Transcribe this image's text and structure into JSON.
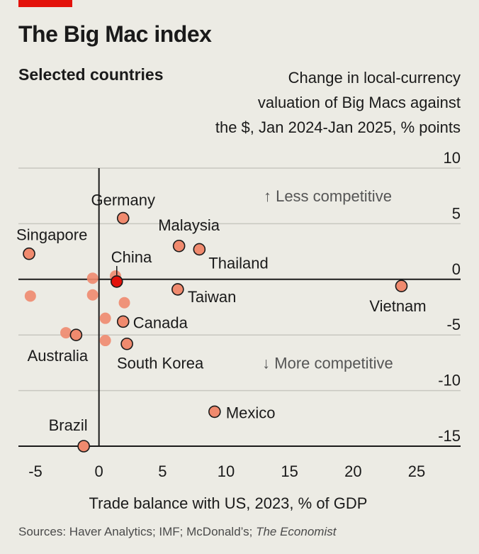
{
  "header": {
    "title": "The Big Mac index",
    "subtitle": "Selected countries",
    "source_prefix": "Sources: Haver Analytics; IMF; McDonald’s; ",
    "source_italic": "The Economist"
  },
  "colors": {
    "background": "#ecebe4",
    "accent_red": "#e3120b",
    "point_fill": "#f08a6e",
    "highlight_fill": "#e3120b",
    "axis": "#1a1a1a",
    "grid": "#c8c7c0",
    "annotation_text": "#555555"
  },
  "chart_data": {
    "type": "scatter",
    "ylabel": "Change in local-currency\nvaluation of Big Macs against\nthe $, Jan 2024-Jan 2025, % points",
    "xlabel": "Trade balance with US, 2023, % of GDP",
    "xlim": [
      -6,
      27
    ],
    "ylim": [
      -15,
      10
    ],
    "x_ticks": [
      -5,
      0,
      5,
      10,
      15,
      20,
      25
    ],
    "y_ticks": [
      10,
      5,
      0,
      -5,
      -10,
      -15
    ],
    "grid": "horizontal",
    "annotations": [
      {
        "text": "↑ Less competitive",
        "x": 18,
        "y": 7.5
      },
      {
        "text": "↓ More competitive",
        "x": 18,
        "y": -7.5
      }
    ],
    "points": [
      {
        "label": "Germany",
        "x": 1.9,
        "y": 5.5,
        "outlined": true,
        "highlight": false
      },
      {
        "label": "Malaysia",
        "x": 6.3,
        "y": 3.0,
        "outlined": true,
        "highlight": false
      },
      {
        "label": "Thailand",
        "x": 7.9,
        "y": 2.7,
        "outlined": true,
        "highlight": false
      },
      {
        "label": "Singapore",
        "x": -5.5,
        "y": 2.3,
        "outlined": true,
        "highlight": false
      },
      {
        "label": "China",
        "x": 1.4,
        "y": -0.2,
        "outlined": true,
        "highlight": true
      },
      {
        "label": "Taiwan",
        "x": 6.2,
        "y": -0.9,
        "outlined": true,
        "highlight": false
      },
      {
        "label": "Vietnam",
        "x": 23.8,
        "y": -0.6,
        "outlined": true,
        "highlight": false
      },
      {
        "label": "Canada",
        "x": 1.9,
        "y": -3.8,
        "outlined": true,
        "highlight": false
      },
      {
        "label": "Australia",
        "x": -1.8,
        "y": -5.0,
        "outlined": true,
        "highlight": false
      },
      {
        "label": "South Korea",
        "x": 2.2,
        "y": -5.8,
        "outlined": true,
        "highlight": false
      },
      {
        "label": "Mexico",
        "x": 9.1,
        "y": -11.9,
        "outlined": true,
        "highlight": false
      },
      {
        "label": "Brazil",
        "x": -1.2,
        "y": -15.0,
        "outlined": true,
        "highlight": false
      },
      {
        "label": "",
        "x": -5.4,
        "y": -1.5,
        "outlined": false,
        "highlight": false
      },
      {
        "label": "",
        "x": -0.5,
        "y": 0.1,
        "outlined": false,
        "highlight": false
      },
      {
        "label": "",
        "x": -0.5,
        "y": -1.4,
        "outlined": false,
        "highlight": false
      },
      {
        "label": "",
        "x": 1.3,
        "y": 0.3,
        "outlined": false,
        "highlight": false
      },
      {
        "label": "",
        "x": 2.0,
        "y": -2.1,
        "outlined": false,
        "highlight": false
      },
      {
        "label": "",
        "x": 0.5,
        "y": -3.5,
        "outlined": false,
        "highlight": false
      },
      {
        "label": "",
        "x": 0.5,
        "y": -5.5,
        "outlined": false,
        "highlight": false
      },
      {
        "label": "",
        "x": -2.6,
        "y": -4.8,
        "outlined": false,
        "highlight": false
      }
    ]
  }
}
